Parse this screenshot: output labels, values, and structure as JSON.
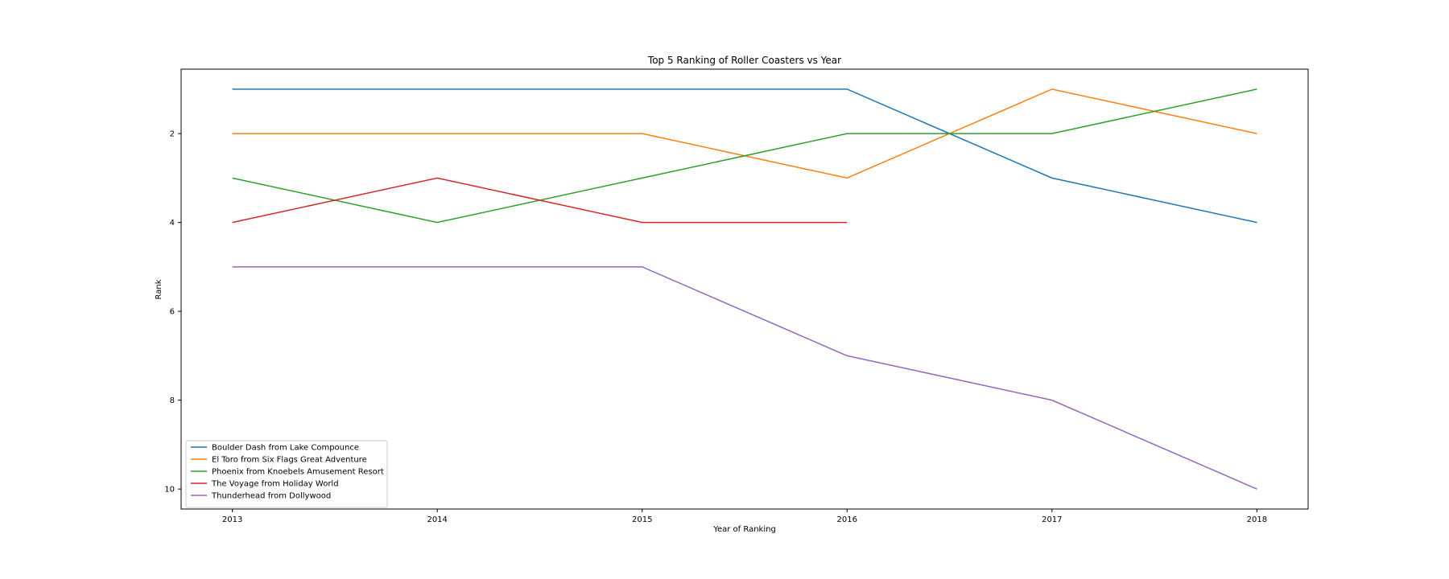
{
  "chart_data": {
    "type": "line",
    "title": "Top 5 Ranking of Roller Coasters vs Year",
    "xlabel": "Year of Ranking",
    "ylabel": "Rank",
    "x": [
      2013,
      2014,
      2015,
      2016,
      2017,
      2018
    ],
    "xlim": [
      2012.75,
      2018.25
    ],
    "ylim": [
      10.45,
      0.55
    ],
    "y_inverted": true,
    "xticks": [
      "2013",
      "2014",
      "2015",
      "2016",
      "2017",
      "2018"
    ],
    "yticks": [
      "2",
      "4",
      "6",
      "8",
      "10"
    ],
    "grid": false,
    "legend_position": "lower-left",
    "series": [
      {
        "name": "Boulder Dash from Lake Compounce",
        "color": "#1f77b4",
        "values": [
          1,
          1,
          1,
          1,
          3,
          4
        ]
      },
      {
        "name": "El Toro from Six Flags Great Adventure",
        "color": "#ff7f0e",
        "values": [
          2,
          2,
          2,
          3,
          1,
          2
        ]
      },
      {
        "name": "Phoenix from Knoebels Amusement Resort",
        "color": "#2ca02c",
        "values": [
          3,
          4,
          3,
          2,
          2,
          1
        ]
      },
      {
        "name": "The Voyage from Holiday World",
        "color": "#d62728",
        "values": [
          4,
          3,
          4,
          4,
          null,
          null
        ]
      },
      {
        "name": "Thunderhead from Dollywood",
        "color": "#9467bd",
        "values": [
          5,
          5,
          5,
          7,
          8,
          10
        ]
      }
    ]
  }
}
